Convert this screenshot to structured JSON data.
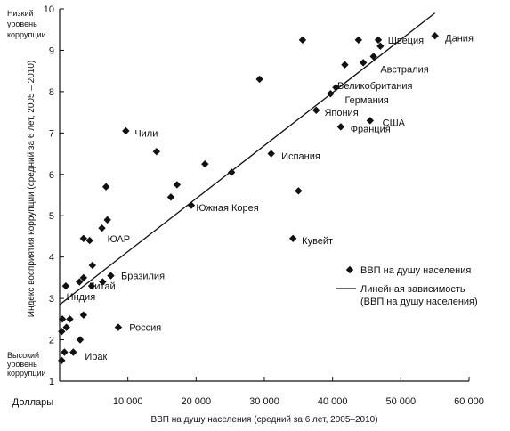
{
  "chart_data": {
    "type": "scatter",
    "xlabel": "ВВП на душу населения (средний за 6 лет, 2005–2010)",
    "ylabel": "Индекс восприятия коррупции (средний за 6 лет, 2005 – 2010)",
    "x_unit_label": "Доллары",
    "y_top_note": [
      "Низкий",
      "уровень",
      "коррупции"
    ],
    "y_bottom_note": [
      "Высокий",
      "уровень",
      "коррупции"
    ],
    "xlim": [
      0,
      60000
    ],
    "ylim": [
      1,
      10
    ],
    "x_ticks": [
      "10 000",
      "20 000",
      "30 000",
      "40 000",
      "50 000",
      "60 000"
    ],
    "y_ticks": [
      "1",
      "2",
      "3",
      "4",
      "5",
      "6",
      "7",
      "8",
      "9",
      "10"
    ],
    "grid": false,
    "legend": {
      "placement": "bottom-right",
      "series_label": "ВВП на душу населения",
      "line_label_1": "Линейная зависимость",
      "line_label_2": "(ВВП на душу населения)"
    },
    "trend_line": {
      "x": [
        0,
        55000
      ],
      "y": [
        2.85,
        9.9
      ]
    },
    "points": [
      {
        "x": 300,
        "y": 1.5
      },
      {
        "x": 700,
        "y": 1.7
      },
      {
        "x": 2000,
        "y": 1.7
      },
      {
        "x": 3000,
        "y": 2.0
      },
      {
        "x": 300,
        "y": 2.2
      },
      {
        "x": 1000,
        "y": 2.3
      },
      {
        "x": 400,
        "y": 2.5
      },
      {
        "x": 1500,
        "y": 2.5
      },
      {
        "x": 3500,
        "y": 2.6
      },
      {
        "x": 8600,
        "y": 2.3
      },
      {
        "x": 900,
        "y": 3.3
      },
      {
        "x": 2900,
        "y": 3.4
      },
      {
        "x": 3500,
        "y": 3.5
      },
      {
        "x": 4700,
        "y": 3.3
      },
      {
        "x": 6300,
        "y": 3.4
      },
      {
        "x": 7500,
        "y": 3.55
      },
      {
        "x": 4800,
        "y": 3.8
      },
      {
        "x": 3500,
        "y": 4.45
      },
      {
        "x": 4400,
        "y": 4.4
      },
      {
        "x": 6200,
        "y": 4.7
      },
      {
        "x": 7000,
        "y": 4.9
      },
      {
        "x": 6800,
        "y": 5.7
      },
      {
        "x": 9700,
        "y": 7.05
      },
      {
        "x": 14200,
        "y": 6.55
      },
      {
        "x": 16300,
        "y": 5.45
      },
      {
        "x": 17200,
        "y": 5.75
      },
      {
        "x": 19300,
        "y": 5.25
      },
      {
        "x": 21300,
        "y": 6.25
      },
      {
        "x": 25200,
        "y": 6.05
      },
      {
        "x": 29300,
        "y": 8.3
      },
      {
        "x": 31000,
        "y": 6.5
      },
      {
        "x": 35000,
        "y": 5.6
      },
      {
        "x": 34200,
        "y": 4.45
      },
      {
        "x": 35600,
        "y": 9.25
      },
      {
        "x": 37600,
        "y": 7.55
      },
      {
        "x": 39700,
        "y": 7.95
      },
      {
        "x": 40500,
        "y": 8.1
      },
      {
        "x": 41200,
        "y": 7.15
      },
      {
        "x": 41800,
        "y": 8.65
      },
      {
        "x": 43800,
        "y": 9.25
      },
      {
        "x": 44500,
        "y": 8.7
      },
      {
        "x": 45500,
        "y": 7.3
      },
      {
        "x": 46000,
        "y": 8.85
      },
      {
        "x": 46700,
        "y": 9.25
      },
      {
        "x": 47000,
        "y": 9.1
      },
      {
        "x": 55000,
        "y": 9.35
      }
    ],
    "labels": [
      {
        "text": "Ирак",
        "x": 3700,
        "y": 1.6
      },
      {
        "text": "Россия",
        "x": 10200,
        "y": 2.3
      },
      {
        "text": "Индия",
        "x": 1000,
        "y": 3.05
      },
      {
        "text": "Китай",
        "x": 4300,
        "y": 3.3
      },
      {
        "text": "Бразилия",
        "x": 9000,
        "y": 3.55
      },
      {
        "text": "ЮАР",
        "x": 7000,
        "y": 4.45
      },
      {
        "text": "Чили",
        "x": 11000,
        "y": 7.0
      },
      {
        "text": "Южная Корея",
        "x": 20000,
        "y": 5.2
      },
      {
        "text": "Испания",
        "x": 32500,
        "y": 6.45
      },
      {
        "text": "Кувейт",
        "x": 35500,
        "y": 4.4
      },
      {
        "text": "Япония",
        "x": 38800,
        "y": 7.5
      },
      {
        "text": "Франция",
        "x": 42600,
        "y": 7.1
      },
      {
        "text": "США",
        "x": 47300,
        "y": 7.25
      },
      {
        "text": "Германия",
        "x": 41800,
        "y": 7.8
      },
      {
        "text": "Великобритания",
        "x": 40700,
        "y": 8.15
      },
      {
        "text": "Австралия",
        "x": 47000,
        "y": 8.55
      },
      {
        "text": "Швеция",
        "x": 48100,
        "y": 9.25
      },
      {
        "text": "Дания",
        "x": 56500,
        "y": 9.3
      }
    ]
  }
}
